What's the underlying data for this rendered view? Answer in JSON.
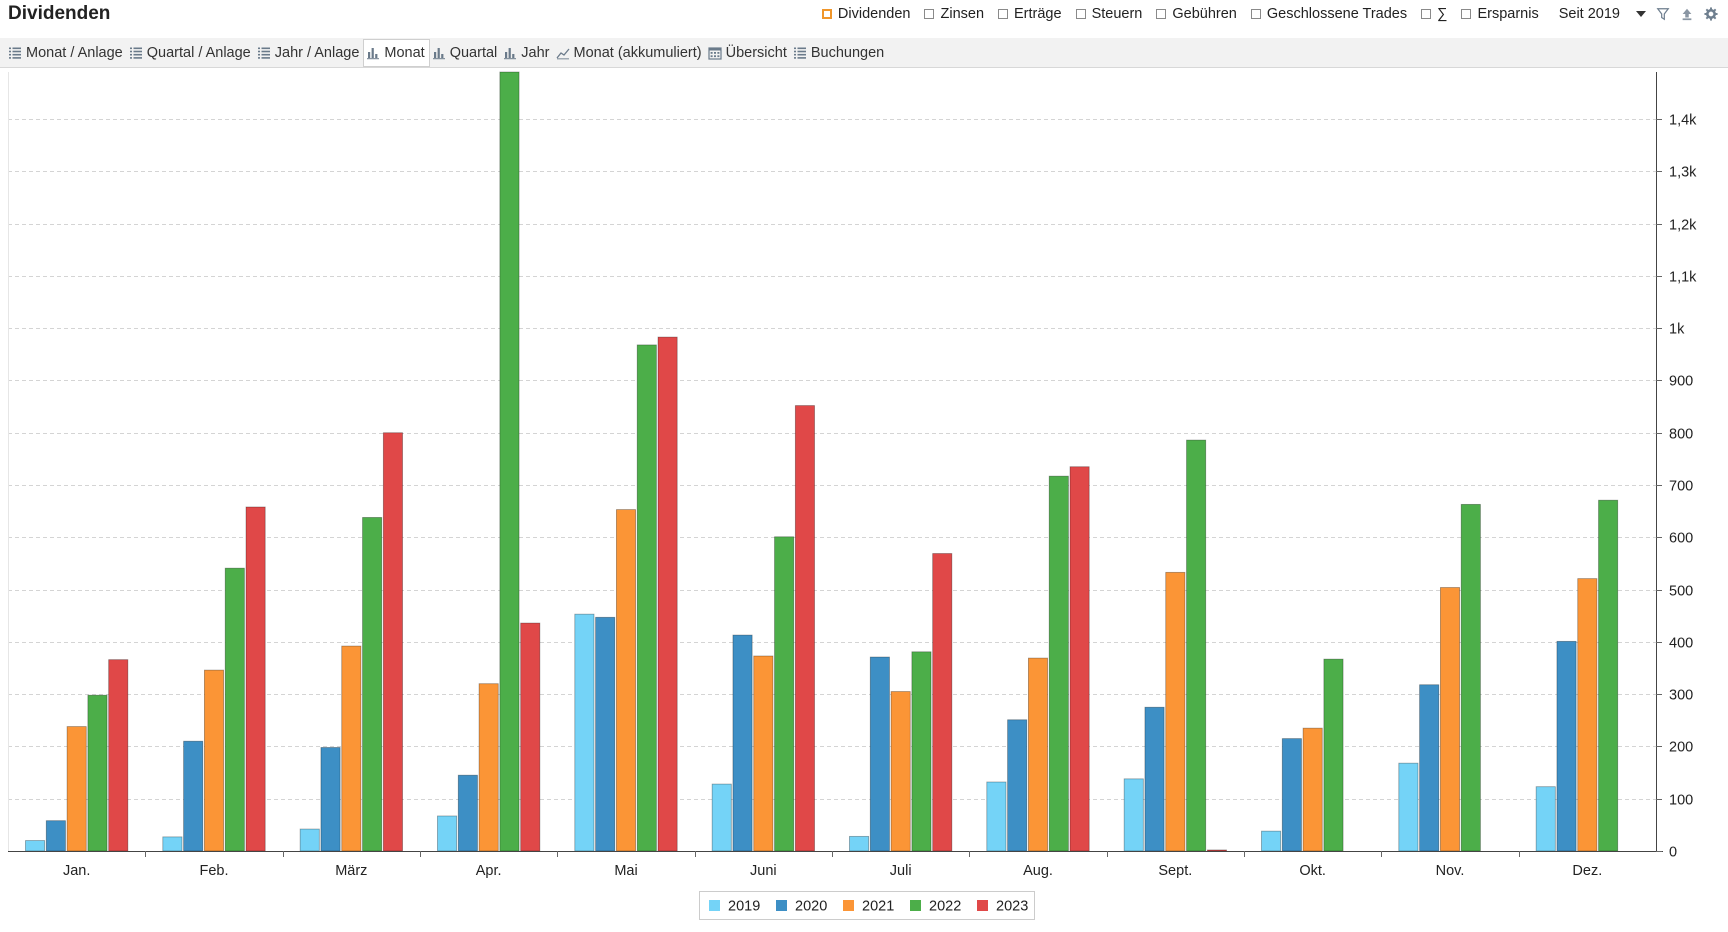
{
  "header": {
    "title": "Dividenden",
    "filters": [
      {
        "label": "Dividenden",
        "checked": true
      },
      {
        "label": "Zinsen",
        "checked": false
      },
      {
        "label": "Erträge",
        "checked": false
      },
      {
        "label": "Steuern",
        "checked": false
      },
      {
        "label": "Gebühren",
        "checked": false
      },
      {
        "label": "Geschlossene Trades",
        "checked": false
      },
      {
        "label": "∑",
        "checked": false
      },
      {
        "label": "Ersparnis",
        "checked": false
      }
    ],
    "period": "Seit 2019",
    "icons": [
      "filter-icon",
      "export-icon",
      "gear-icon"
    ]
  },
  "views": [
    {
      "label": "Monat / Anlage",
      "icon": "list-icon",
      "active": false
    },
    {
      "label": "Quartal / Anlage",
      "icon": "list-icon",
      "active": false
    },
    {
      "label": "Jahr / Anlage",
      "icon": "list-icon",
      "active": false
    },
    {
      "label": "Monat",
      "icon": "bar-chart-icon",
      "active": true
    },
    {
      "label": "Quartal",
      "icon": "bar-chart-icon",
      "active": false
    },
    {
      "label": "Jahr",
      "icon": "bar-chart-icon",
      "active": false
    },
    {
      "label": "Monat (akkumuliert)",
      "icon": "line-chart-icon",
      "active": false
    },
    {
      "label": "Übersicht",
      "icon": "calendar-icon",
      "active": false
    },
    {
      "label": "Buchungen",
      "icon": "list-icon",
      "active": false
    }
  ],
  "chart_data": {
    "type": "bar",
    "categories": [
      "Jan.",
      "Feb.",
      "März",
      "Apr.",
      "Mai",
      "Juni",
      "Juli",
      "Aug.",
      "Sept.",
      "Okt.",
      "Nov.",
      "Dez."
    ],
    "series": [
      {
        "name": "2019",
        "color": "#74d3f7",
        "values": [
          20,
          27,
          42,
          67,
          453,
          128,
          28,
          132,
          138,
          38,
          168,
          123
        ]
      },
      {
        "name": "2020",
        "color": "#3d8fc5",
        "values": [
          58,
          210,
          198,
          145,
          447,
          413,
          371,
          251,
          275,
          215,
          318,
          401
        ]
      },
      {
        "name": "2021",
        "color": "#fb9536",
        "values": [
          238,
          346,
          392,
          320,
          653,
          373,
          305,
          369,
          533,
          235,
          504,
          521
        ]
      },
      {
        "name": "2022",
        "color": "#4cae49",
        "values": [
          298,
          541,
          638,
          1490,
          968,
          601,
          381,
          717,
          786,
          367,
          663,
          671
        ]
      },
      {
        "name": "2023",
        "color": "#e04848",
        "values": [
          366,
          658,
          800,
          436,
          983,
          852,
          569,
          735,
          2,
          0,
          0,
          0
        ]
      }
    ],
    "yticks": [
      {
        "value": 0,
        "label": "0"
      },
      {
        "value": 100,
        "label": "100"
      },
      {
        "value": 200,
        "label": "200"
      },
      {
        "value": 300,
        "label": "300"
      },
      {
        "value": 400,
        "label": "400"
      },
      {
        "value": 500,
        "label": "500"
      },
      {
        "value": 600,
        "label": "600"
      },
      {
        "value": 700,
        "label": "700"
      },
      {
        "value": 800,
        "label": "800"
      },
      {
        "value": 900,
        "label": "900"
      },
      {
        "value": 1000,
        "label": "1k"
      },
      {
        "value": 1100,
        "label": "1,1k"
      },
      {
        "value": 1200,
        "label": "1,2k"
      },
      {
        "value": 1300,
        "label": "1,3k"
      },
      {
        "value": 1400,
        "label": "1,4k"
      }
    ],
    "ylim": [
      0,
      1490
    ],
    "yaxis_position": "right",
    "grid": true,
    "legend_position": "bottom-center"
  }
}
